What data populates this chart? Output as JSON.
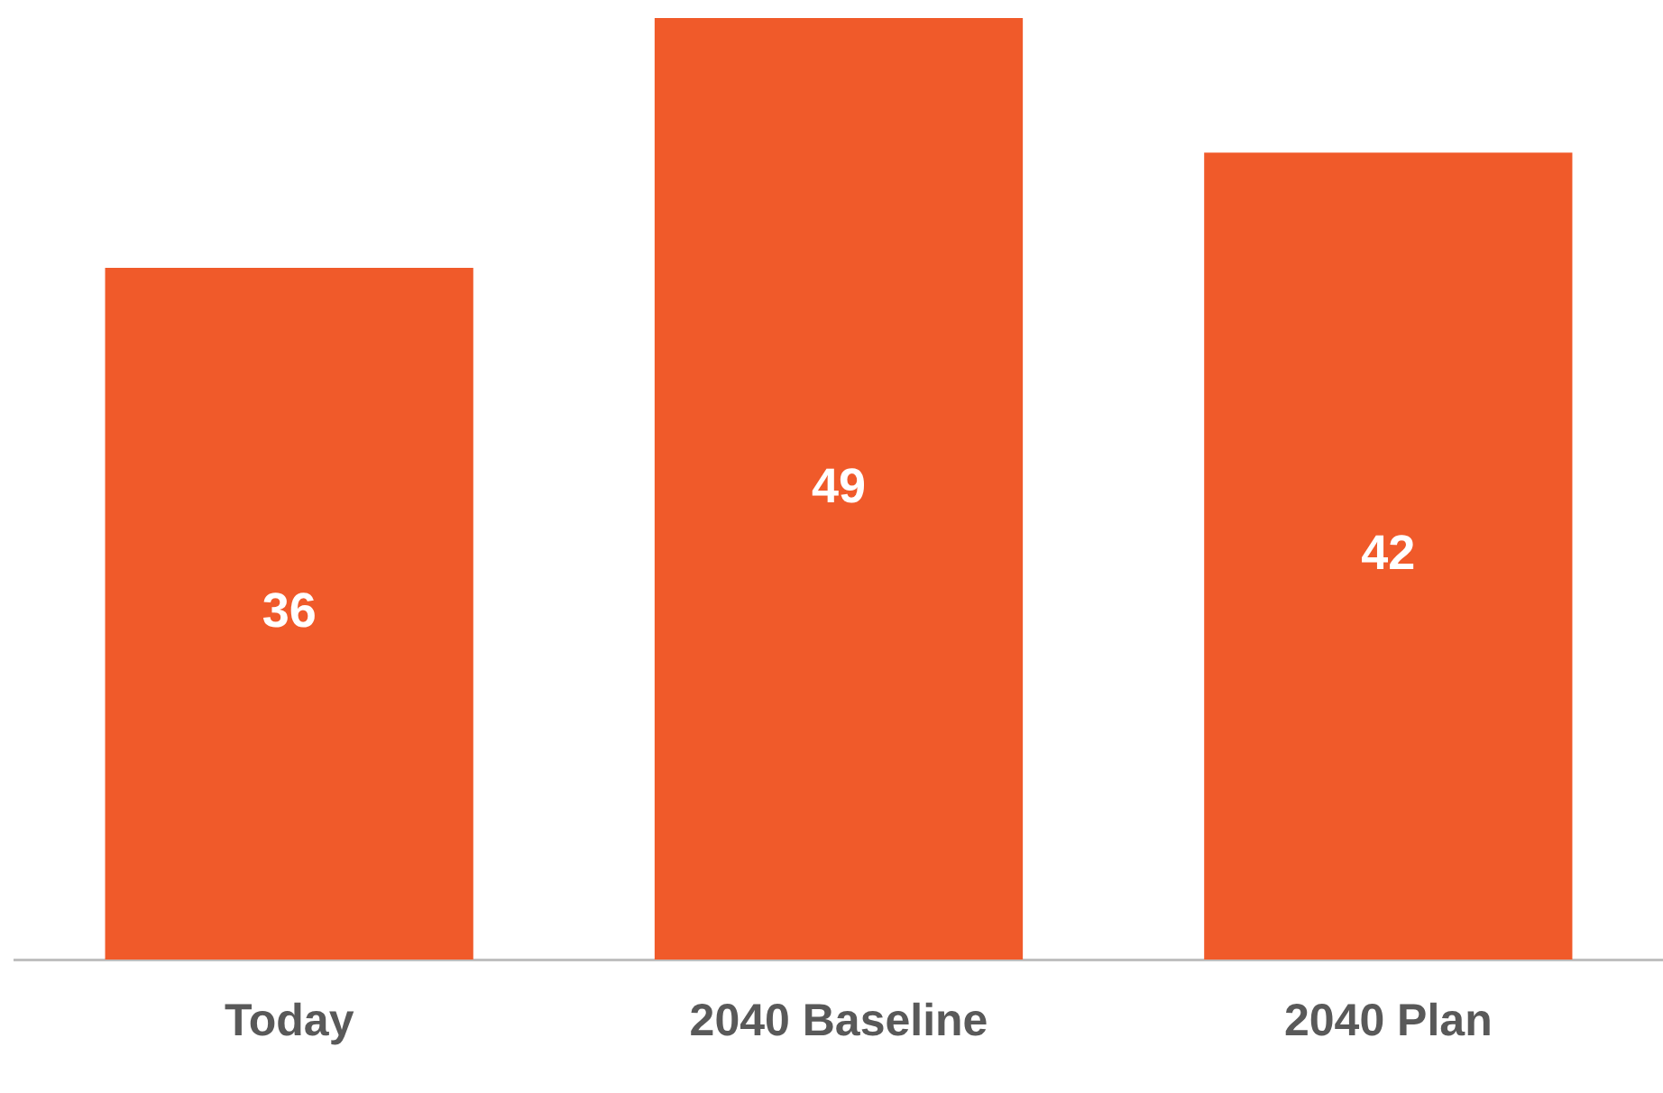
{
  "chart_data": {
    "type": "bar",
    "categories": [
      "Today",
      "2040 Baseline",
      "2040 Plan"
    ],
    "values": [
      36,
      49,
      42
    ],
    "color": "#f05a2a",
    "ylim": [
      0,
      49
    ],
    "data_labels": true,
    "tick_labels": "x",
    "grid": false,
    "legend": false
  }
}
